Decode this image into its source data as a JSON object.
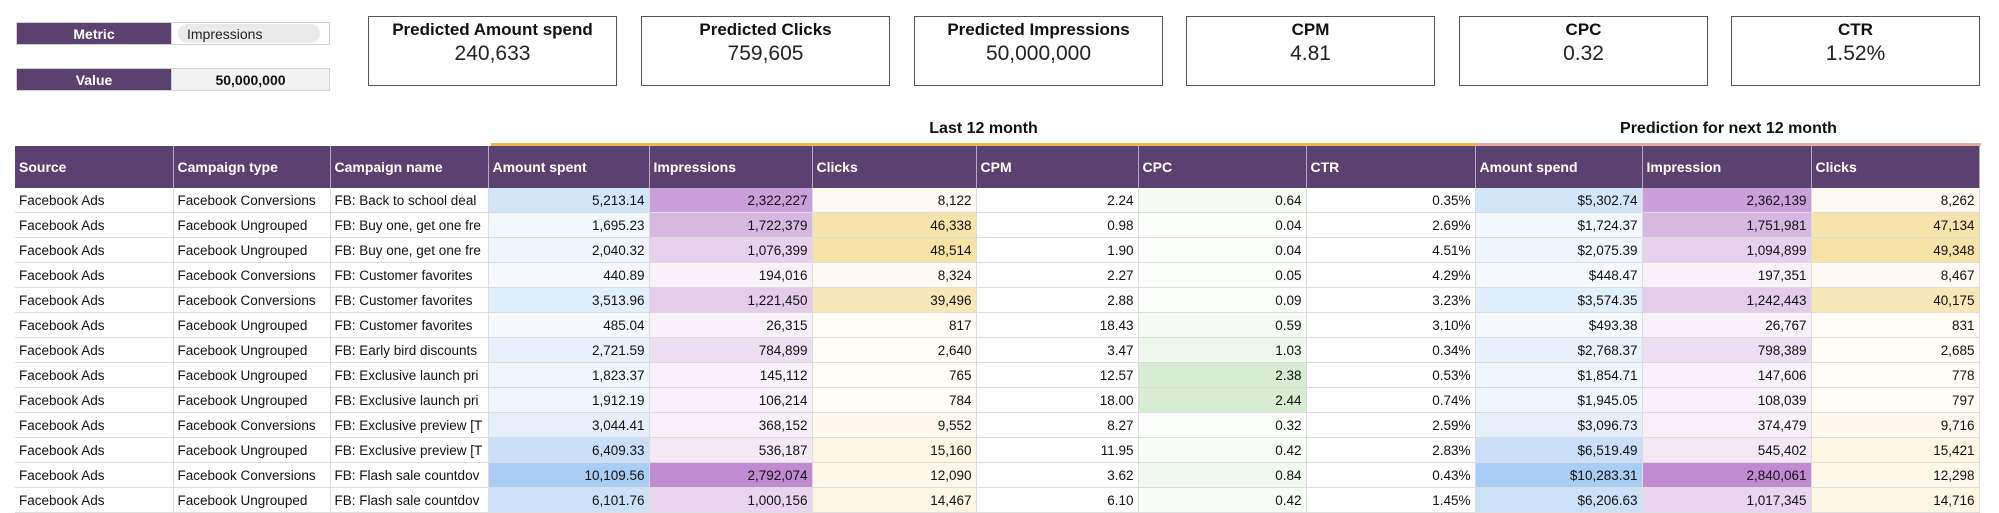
{
  "controls": {
    "metric_label": "Metric",
    "metric_value": "Impressions",
    "value_label": "Value",
    "value_value": "50,000,000"
  },
  "kpis": [
    {
      "title": "Predicted Amount spend",
      "value": "240,633"
    },
    {
      "title": "Predicted Clicks",
      "value": "759,605"
    },
    {
      "title": "Predicted Impressions",
      "value": "50,000,000"
    },
    {
      "title": "CPM",
      "value": "4.81"
    },
    {
      "title": "CPC",
      "value": "0.32"
    },
    {
      "title": "CTR",
      "value": "1.52%"
    }
  ],
  "sections": {
    "last": "Last 12 month",
    "pred": "Prediction for next 12 month"
  },
  "colors": {
    "header": "#5b4170",
    "amount": "#a9cdf3",
    "impressions": "#c18bd1",
    "clicks": "#f8e3a6",
    "cpc": "#d7ecd2",
    "section_bar_last": "#e9b94a",
    "section_bar_pred": "#e7a9a0"
  },
  "table": {
    "headers": [
      "Source",
      "Campaign type",
      "Campaign name",
      "Amount spent",
      "Impressions",
      "Clicks",
      "CPM",
      "CPC",
      "CTR",
      "Amount spend",
      "Impression",
      "Clicks"
    ],
    "rows": [
      [
        "Facebook Ads",
        "Facebook Conversions",
        "FB: Back to school deal",
        "5,213.14",
        "2,322,227",
        "8,122",
        "2.24",
        "0.64",
        "0.35%",
        "$5,302.74",
        "2,362,139",
        "8,262"
      ],
      [
        "Facebook Ads",
        "Facebook Ungrouped",
        "FB: Buy one, get one fre",
        "1,695.23",
        "1,722,379",
        "46,338",
        "0.98",
        "0.04",
        "2.69%",
        "$1,724.37",
        "1,751,981",
        "47,134"
      ],
      [
        "Facebook Ads",
        "Facebook Ungrouped",
        "FB: Buy one, get one fre",
        "2,040.32",
        "1,076,399",
        "48,514",
        "1.90",
        "0.04",
        "4.51%",
        "$2,075.39",
        "1,094,899",
        "49,348"
      ],
      [
        "Facebook Ads",
        "Facebook Conversions",
        "FB: Customer favorites",
        "440.89",
        "194,016",
        "8,324",
        "2.27",
        "0.05",
        "4.29%",
        "$448.47",
        "197,351",
        "8,467"
      ],
      [
        "Facebook Ads",
        "Facebook Conversions",
        "FB: Customer favorites",
        "3,513.96",
        "1,221,450",
        "39,496",
        "2.88",
        "0.09",
        "3.23%",
        "$3,574.35",
        "1,242,443",
        "40,175"
      ],
      [
        "Facebook Ads",
        "Facebook Ungrouped",
        "FB: Customer favorites",
        "485.04",
        "26,315",
        "817",
        "18.43",
        "0.59",
        "3.10%",
        "$493.38",
        "26,767",
        "831"
      ],
      [
        "Facebook Ads",
        "Facebook Ungrouped",
        "FB: Early bird discounts",
        "2,721.59",
        "784,899",
        "2,640",
        "3.47",
        "1.03",
        "0.34%",
        "$2,768.37",
        "798,389",
        "2,685"
      ],
      [
        "Facebook Ads",
        "Facebook Ungrouped",
        "FB: Exclusive launch pri",
        "1,823.37",
        "145,112",
        "765",
        "12.57",
        "2.38",
        "0.53%",
        "$1,854.71",
        "147,606",
        "778"
      ],
      [
        "Facebook Ads",
        "Facebook Ungrouped",
        "FB: Exclusive launch pri",
        "1,912.19",
        "106,214",
        "784",
        "18.00",
        "2.44",
        "0.74%",
        "$1,945.05",
        "108,039",
        "797"
      ],
      [
        "Facebook Ads",
        "Facebook Conversions",
        "FB: Exclusive preview [T",
        "3,044.41",
        "368,152",
        "9,552",
        "8.27",
        "0.32",
        "2.59%",
        "$3,096.73",
        "374,479",
        "9,716"
      ],
      [
        "Facebook Ads",
        "Facebook Ungrouped",
        "FB: Exclusive preview [T",
        "6,409.33",
        "536,187",
        "15,160",
        "11.95",
        "0.42",
        "2.83%",
        "$6,519.49",
        "545,402",
        "15,421"
      ],
      [
        "Facebook Ads",
        "Facebook Conversions",
        "FB: Flash sale countdov",
        "10,109.56",
        "2,792,074",
        "12,090",
        "3.62",
        "0.84",
        "0.43%",
        "$10,283.31",
        "2,840,061",
        "12,298"
      ],
      [
        "Facebook Ads",
        "Facebook Ungrouped",
        "FB: Flash sale countdov",
        "6,101.76",
        "1,000,156",
        "14,467",
        "6.10",
        "0.42",
        "1.45%",
        "$6,206.63",
        "1,017,345",
        "14,716"
      ]
    ]
  }
}
